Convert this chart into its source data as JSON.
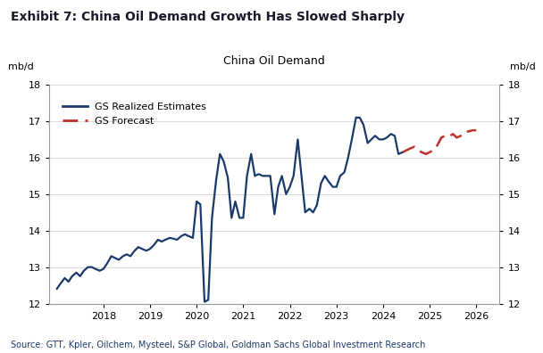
{
  "title": "Exhibit 7: China Oil Demand Growth Has Slowed Sharply",
  "subtitle": "China Oil Demand",
  "ylabel_left": "mb/d",
  "ylabel_right": "mb/d",
  "source": "Source: GTT, Kpler, Oilchem, Mysteel, S&P Global, Goldman Sachs Global Investment Research",
  "ylim": [
    12,
    18
  ],
  "yticks": [
    12,
    13,
    14,
    15,
    16,
    17,
    18
  ],
  "xlim": [
    2016.83,
    2026.5
  ],
  "xticks": [
    2018,
    2019,
    2020,
    2021,
    2022,
    2023,
    2024,
    2025,
    2026
  ],
  "line_color": "#1b3a6b",
  "forecast_color": "#c0312b",
  "source_color": "#1b3a6b",
  "title_color": "#1a1a2e",
  "background_color": "#ffffff",
  "realized_x": [
    2017.0,
    2017.08,
    2017.17,
    2017.25,
    2017.33,
    2017.42,
    2017.5,
    2017.58,
    2017.67,
    2017.75,
    2017.83,
    2017.92,
    2018.0,
    2018.08,
    2018.17,
    2018.25,
    2018.33,
    2018.42,
    2018.5,
    2018.58,
    2018.67,
    2018.75,
    2018.83,
    2018.92,
    2019.0,
    2019.08,
    2019.17,
    2019.25,
    2019.33,
    2019.42,
    2019.5,
    2019.58,
    2019.67,
    2019.75,
    2019.83,
    2019.92,
    2020.0,
    2020.08,
    2020.17,
    2020.25,
    2020.33,
    2020.42,
    2020.5,
    2020.58,
    2020.67,
    2020.75,
    2020.83,
    2020.92,
    2021.0,
    2021.08,
    2021.17,
    2021.25,
    2021.33,
    2021.42,
    2021.5,
    2021.58,
    2021.67,
    2021.75,
    2021.83,
    2021.92,
    2022.0,
    2022.08,
    2022.17,
    2022.25,
    2022.33,
    2022.42,
    2022.5,
    2022.58,
    2022.67,
    2022.75,
    2022.83,
    2022.92,
    2023.0,
    2023.08,
    2023.17,
    2023.25,
    2023.33,
    2023.42,
    2023.5,
    2023.58,
    2023.67,
    2023.75,
    2023.83,
    2023.92,
    2024.0,
    2024.08,
    2024.17,
    2024.25,
    2024.33,
    2024.42
  ],
  "realized_y": [
    12.4,
    12.55,
    12.7,
    12.6,
    12.75,
    12.85,
    12.75,
    12.9,
    13.0,
    13.0,
    12.95,
    12.9,
    12.95,
    13.1,
    13.3,
    13.25,
    13.2,
    13.3,
    13.35,
    13.3,
    13.45,
    13.55,
    13.5,
    13.45,
    13.5,
    13.6,
    13.75,
    13.7,
    13.75,
    13.8,
    13.78,
    13.75,
    13.85,
    13.9,
    13.85,
    13.8,
    14.8,
    14.72,
    12.05,
    12.1,
    14.35,
    15.4,
    16.1,
    15.9,
    15.45,
    14.35,
    14.8,
    14.35,
    14.35,
    15.5,
    16.1,
    15.5,
    15.55,
    15.5,
    15.5,
    15.5,
    14.45,
    15.2,
    15.5,
    15.0,
    15.2,
    15.5,
    16.5,
    15.5,
    14.5,
    14.6,
    14.5,
    14.7,
    15.3,
    15.5,
    15.35,
    15.2,
    15.2,
    15.5,
    15.6,
    16.0,
    16.5,
    17.1,
    17.1,
    16.9,
    16.4,
    16.5,
    16.6,
    16.5,
    16.5,
    16.55,
    16.65,
    16.6,
    16.1,
    16.15
  ],
  "forecast_x": [
    2024.42,
    2024.5,
    2024.58,
    2024.67,
    2024.75,
    2024.83,
    2024.92,
    2025.0,
    2025.08,
    2025.17,
    2025.25,
    2025.33,
    2025.42,
    2025.5,
    2025.58,
    2025.67,
    2025.75,
    2025.83,
    2025.92,
    2026.0
  ],
  "forecast_y": [
    16.15,
    16.2,
    16.25,
    16.3,
    16.2,
    16.15,
    16.1,
    16.15,
    16.2,
    16.35,
    16.55,
    16.6,
    16.58,
    16.65,
    16.55,
    16.6,
    16.7,
    16.72,
    16.75,
    16.75
  ]
}
